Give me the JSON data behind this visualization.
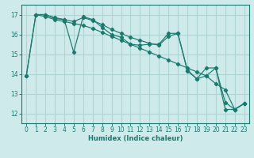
{
  "xlabel": "Humidex (Indice chaleur)",
  "bg_color": "#ceeaea",
  "grid_color": "#aed4d4",
  "line_color": "#1a7a6e",
  "xlim": [
    -0.5,
    23.5
  ],
  "ylim": [
    11.5,
    17.5
  ],
  "xticks": [
    0,
    1,
    2,
    3,
    4,
    5,
    6,
    7,
    8,
    9,
    10,
    11,
    12,
    13,
    14,
    15,
    16,
    17,
    18,
    19,
    20,
    21,
    22,
    23
  ],
  "yticks": [
    12,
    13,
    14,
    15,
    16,
    17
  ],
  "line1": [
    [
      0,
      13.9
    ],
    [
      1,
      17.0
    ],
    [
      2,
      17.0
    ],
    [
      3,
      16.8
    ],
    [
      4,
      16.75
    ],
    [
      5,
      15.1
    ],
    [
      6,
      16.9
    ],
    [
      7,
      16.75
    ],
    [
      8,
      16.35
    ],
    [
      9,
      16.0
    ],
    [
      10,
      15.85
    ],
    [
      11,
      15.5
    ],
    [
      12,
      15.45
    ],
    [
      13,
      15.5
    ],
    [
      14,
      15.5
    ],
    [
      15,
      16.05
    ],
    [
      16,
      16.05
    ],
    [
      17,
      14.15
    ],
    [
      18,
      13.75
    ],
    [
      19,
      13.9
    ],
    [
      20,
      14.3
    ],
    [
      21,
      12.55
    ],
    [
      22,
      12.2
    ],
    [
      23,
      12.5
    ]
  ],
  "line2": [
    [
      0,
      13.9
    ],
    [
      1,
      17.0
    ],
    [
      2,
      16.9
    ],
    [
      3,
      16.75
    ],
    [
      4,
      16.65
    ],
    [
      5,
      16.55
    ],
    [
      6,
      16.45
    ],
    [
      7,
      16.3
    ],
    [
      8,
      16.1
    ],
    [
      9,
      15.9
    ],
    [
      10,
      15.7
    ],
    [
      11,
      15.5
    ],
    [
      12,
      15.3
    ],
    [
      13,
      15.1
    ],
    [
      14,
      14.9
    ],
    [
      15,
      14.7
    ],
    [
      16,
      14.5
    ],
    [
      17,
      14.3
    ],
    [
      18,
      14.1
    ],
    [
      19,
      13.9
    ],
    [
      20,
      13.5
    ],
    [
      21,
      13.2
    ],
    [
      22,
      12.2
    ],
    [
      23,
      12.5
    ]
  ],
  "line3": [
    [
      1,
      17.0
    ],
    [
      2,
      17.0
    ],
    [
      3,
      16.85
    ],
    [
      4,
      16.75
    ],
    [
      5,
      16.65
    ],
    [
      6,
      16.85
    ],
    [
      7,
      16.7
    ],
    [
      8,
      16.5
    ],
    [
      9,
      16.25
    ],
    [
      10,
      16.05
    ],
    [
      11,
      15.85
    ],
    [
      12,
      15.7
    ],
    [
      13,
      15.55
    ],
    [
      14,
      15.45
    ],
    [
      15,
      15.9
    ],
    [
      16,
      16.05
    ],
    [
      17,
      14.2
    ],
    [
      18,
      13.75
    ],
    [
      19,
      14.3
    ],
    [
      20,
      14.3
    ],
    [
      21,
      12.2
    ],
    [
      22,
      12.2
    ],
    [
      23,
      12.5
    ]
  ]
}
